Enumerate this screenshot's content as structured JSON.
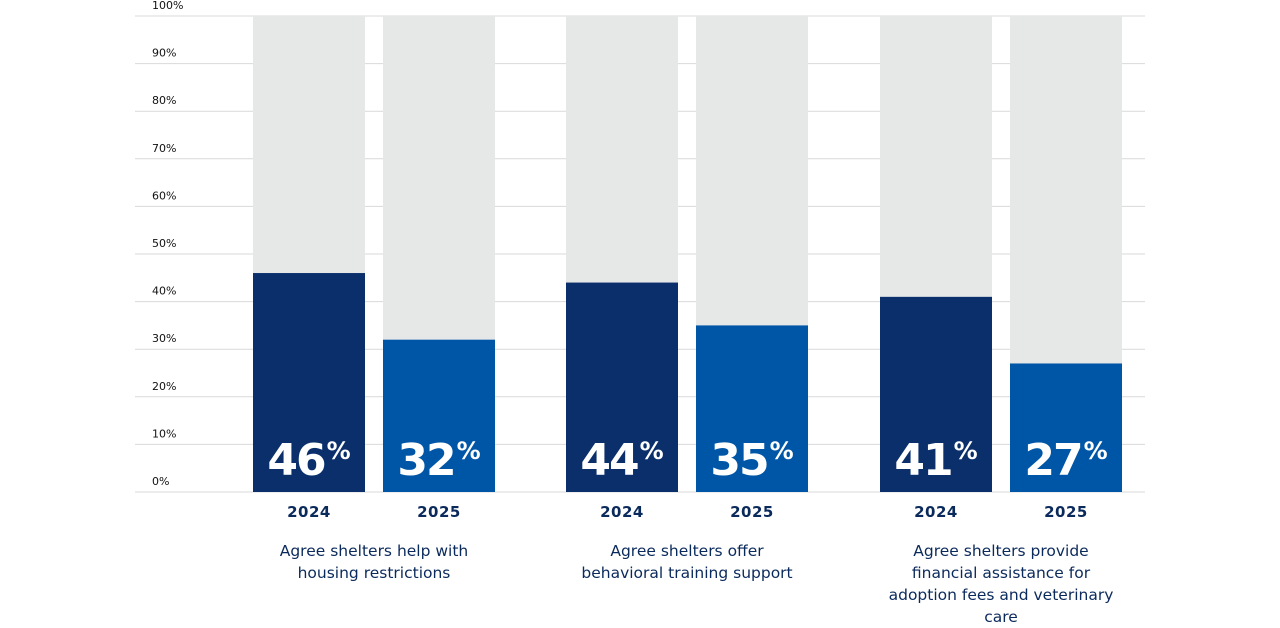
{
  "chart_data": {
    "type": "bar",
    "categories": [
      "Agree shelters help with housing restrictions",
      "Agree shelters offer behavioral training support",
      "Agree shelters provide financial assistance for adoption fees and veterinary care"
    ],
    "category_lines": [
      [
        "Agree shelters help with",
        "housing restrictions"
      ],
      [
        "Agree shelters offer",
        "behavioral training support"
      ],
      [
        "Agree shelters provide",
        "financial assistance for",
        "adoption fees and veterinary",
        "care"
      ]
    ],
    "series": [
      {
        "name": "2024",
        "values": [
          46,
          44,
          41
        ]
      },
      {
        "name": "2025",
        "values": [
          32,
          35,
          27
        ]
      }
    ],
    "value_labels": {
      "2024": [
        "46",
        "44",
        "41"
      ],
      "2025": [
        "32",
        "35",
        "27"
      ],
      "suffix": "%"
    },
    "ylim": [
      0,
      100
    ],
    "yticks": [
      "0%",
      "10%",
      "20%",
      "30%",
      "40%",
      "50%",
      "60%",
      "70%",
      "80%",
      "90%",
      "100%"
    ],
    "ytick_values": [
      0,
      10,
      20,
      30,
      40,
      50,
      60,
      70,
      80,
      90,
      100
    ],
    "grid": true,
    "legend": "none",
    "colors": {
      "2024": "#0a2f6b",
      "2025": "#0056a6",
      "background_bar": "#e6e7e7",
      "grid": "#d9d9d9",
      "label_text": "#0b2a5c"
    }
  }
}
